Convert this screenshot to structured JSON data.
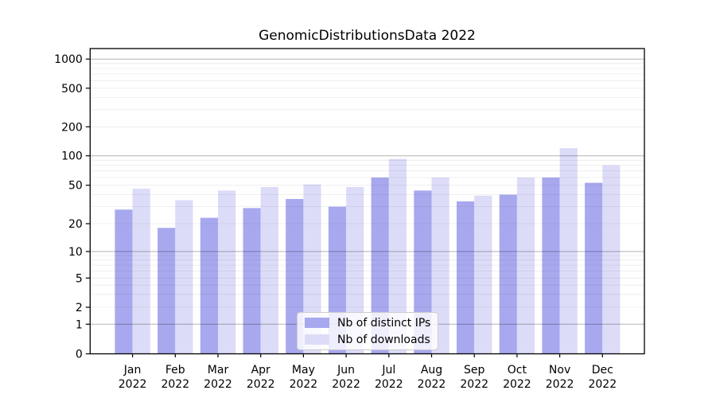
{
  "chart_data": {
    "type": "bar",
    "title": "GenomicDistributionsData 2022",
    "categories": [
      "Jan 2022",
      "Feb 2022",
      "Mar 2022",
      "Apr 2022",
      "May 2022",
      "Jun 2022",
      "Jul 2022",
      "Aug 2022",
      "Sep 2022",
      "Oct 2022",
      "Nov 2022",
      "Dec 2022"
    ],
    "series": [
      {
        "name": "Nb of distinct IPs",
        "color": "#a8a8ef",
        "values": [
          28,
          18,
          23,
          29,
          36,
          30,
          60,
          44,
          34,
          40,
          60,
          53
        ]
      },
      {
        "name": "Nb of downloads",
        "color": "#dcdcf8",
        "values": [
          46,
          35,
          44,
          48,
          51,
          48,
          93,
          60,
          39,
          60,
          120,
          80
        ]
      }
    ],
    "xlabel": "",
    "ylabel": "",
    "yscale": "symlog",
    "y_ticks": [
      0,
      1,
      2,
      5,
      10,
      20,
      50,
      100,
      200,
      500,
      1000
    ],
    "ylim": [
      0,
      1280
    ],
    "grid": true,
    "legend_position": "lower center"
  },
  "colors": {
    "bar_distinct_ips": "#a8a8ef",
    "bar_downloads": "#dcdcf8",
    "grid_major": "#b0b0b0",
    "grid_minor": "#e8e8e8",
    "axis": "#000000",
    "background": "#ffffff"
  }
}
